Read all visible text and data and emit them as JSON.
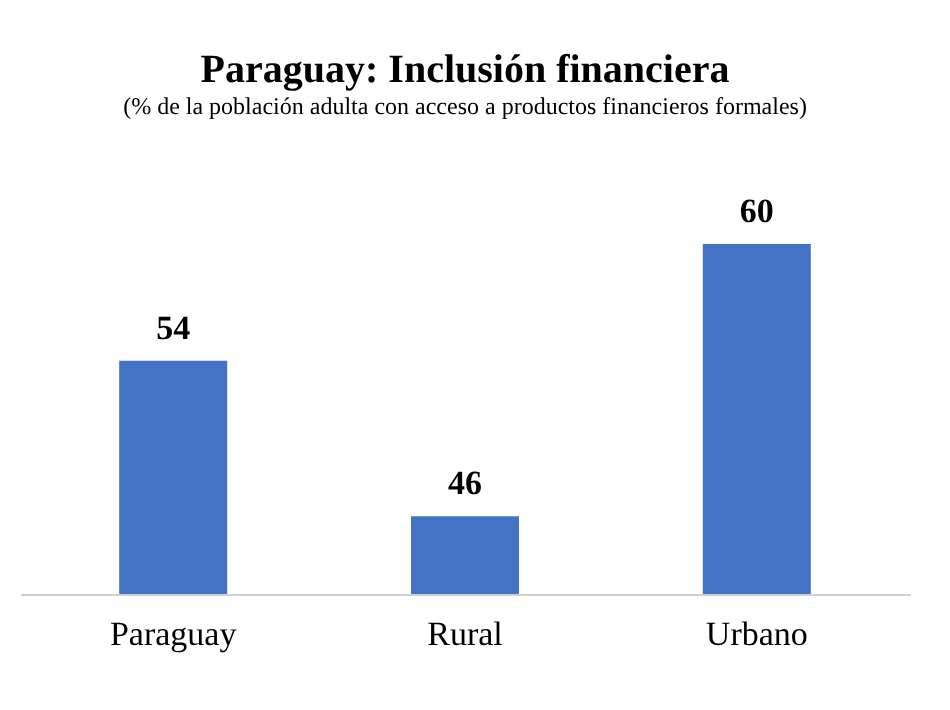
{
  "chart_data": {
    "type": "bar",
    "title": "Paraguay: Inclusión financiera",
    "subtitle": "(% de la población adulta con acceso a productos financieros formales)",
    "categories": [
      "Paraguay",
      "Rural",
      "Urbano"
    ],
    "values": [
      54,
      46,
      60
    ],
    "color": "#4472c4",
    "ylim": [
      42,
      60
    ],
    "data_labels": true
  }
}
